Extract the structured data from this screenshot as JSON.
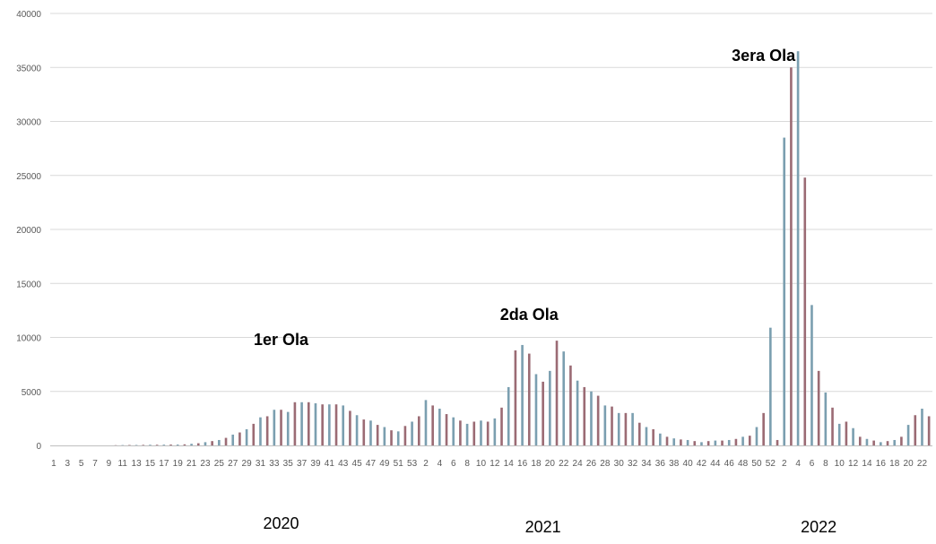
{
  "chart_data": {
    "type": "bar",
    "title": "",
    "xlabel": "",
    "ylabel": "",
    "ylim": [
      0,
      40000
    ],
    "yticks": [
      0,
      5000,
      10000,
      15000,
      20000,
      25000,
      30000,
      35000,
      40000
    ],
    "ytick_labels": [
      "0",
      "5000",
      "10000",
      "15000",
      "20000",
      "25000",
      "30000",
      "35000",
      "40000"
    ],
    "grid": true,
    "legend": "none",
    "colors": {
      "even": "#7b9fb0",
      "odd": "#9b6b74",
      "grid": "#d9d9d9",
      "axis": "#bfbfbf"
    },
    "categories": [
      "1",
      "2",
      "3",
      "4",
      "5",
      "6",
      "7",
      "8",
      "9",
      "10",
      "11",
      "12",
      "13",
      "14",
      "15",
      "16",
      "17",
      "18",
      "19",
      "20",
      "21",
      "22",
      "23",
      "24",
      "25",
      "26",
      "27",
      "28",
      "29",
      "30",
      "31",
      "32",
      "33",
      "34",
      "35",
      "36",
      "37",
      "38",
      "39",
      "40",
      "41",
      "42",
      "43",
      "44",
      "45",
      "46",
      "47",
      "48",
      "49",
      "50",
      "51",
      "52",
      "53",
      "1",
      "2",
      "3",
      "4",
      "5",
      "6",
      "7",
      "8",
      "9",
      "10",
      "11",
      "12",
      "13",
      "14",
      "15",
      "16",
      "17",
      "18",
      "19",
      "20",
      "21",
      "22",
      "23",
      "24",
      "25",
      "26",
      "27",
      "28",
      "29",
      "30",
      "31",
      "32",
      "33",
      "34",
      "35",
      "36",
      "37",
      "38",
      "39",
      "40",
      "41",
      "42",
      "43",
      "44",
      "45",
      "46",
      "47",
      "48",
      "49",
      "50",
      "51",
      "52",
      "1",
      "2",
      "3",
      "4",
      "5",
      "6",
      "7",
      "8",
      "9",
      "10",
      "11",
      "12",
      "13",
      "14",
      "15",
      "16",
      "17",
      "18",
      "19",
      "20",
      "21",
      "22",
      "23"
    ],
    "values": [
      0,
      0,
      0,
      0,
      0,
      0,
      0,
      0,
      0,
      20,
      30,
      40,
      40,
      50,
      60,
      60,
      70,
      80,
      80,
      100,
      150,
      200,
      300,
      400,
      500,
      700,
      1000,
      1200,
      1500,
      2000,
      2600,
      2700,
      3300,
      3300,
      3100,
      4000,
      4000,
      4000,
      3900,
      3800,
      3800,
      3800,
      3700,
      3200,
      2800,
      2400,
      2300,
      1900,
      1700,
      1400,
      1300,
      1800,
      2200,
      2700,
      4200,
      3700,
      3400,
      2900,
      2600,
      2300,
      2000,
      2200,
      2300,
      2200,
      2500,
      3500,
      5400,
      8800,
      9300,
      8500,
      6600,
      5900,
      6900,
      9700,
      8700,
      7400,
      6000,
      5400,
      5000,
      4600,
      3700,
      3600,
      3000,
      3000,
      3000,
      2100,
      1700,
      1500,
      1100,
      800,
      650,
      550,
      500,
      400,
      300,
      400,
      450,
      450,
      500,
      600,
      800,
      900,
      1700,
      3000,
      10900,
      500,
      28500,
      35000,
      36500,
      24800,
      13000,
      6900,
      4900,
      3500,
      2000,
      2200,
      1600,
      800,
      600,
      450,
      300,
      400,
      500,
      800,
      1900,
      2800,
      3400,
      2700
    ],
    "annotations": [
      {
        "text": "1er Ola",
        "x_index": 33,
        "y": 9300
      },
      {
        "text": "2da Ola",
        "x_index": 69,
        "y": 11600
      },
      {
        "text": "3era Ola",
        "x_index": 103,
        "y": 35600
      }
    ],
    "year_labels": [
      {
        "text": "2020",
        "x_index": 33
      },
      {
        "text": "2021",
        "x_index": 71
      },
      {
        "text": "2022",
        "x_index": 111
      }
    ]
  }
}
